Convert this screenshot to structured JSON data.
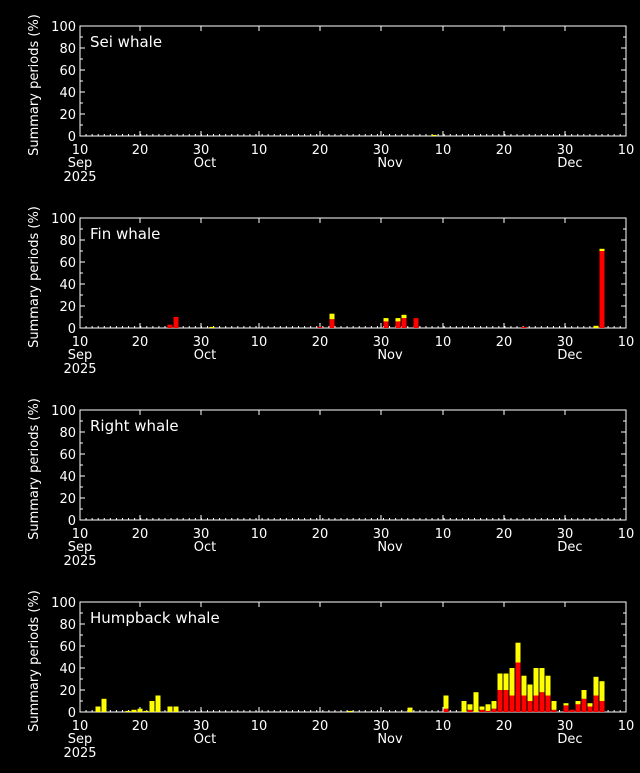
{
  "colors": {
    "background": "#000000",
    "axis": "#ffffff",
    "present": "#ff0000",
    "possible": "#ffff00"
  },
  "chart_data": [
    {
      "type": "bar",
      "stacked": true,
      "title": "Sei whale",
      "ylabel": "Summary periods (%)",
      "ylim": [
        0,
        100
      ],
      "yticks": [
        0,
        20,
        40,
        60,
        80,
        100
      ],
      "xlim": [
        "2025-09-10",
        "2025-12-10"
      ],
      "xticks": [
        "10",
        "20",
        "30",
        "10",
        "20",
        "30",
        "10",
        "20",
        "30",
        "10"
      ],
      "month_labels": [
        "Sep",
        "Oct",
        "Nov",
        "Dec"
      ],
      "year_label": "2025",
      "series": [
        {
          "color": "#ff0000",
          "points": []
        },
        {
          "color": "#ffff00",
          "points": [
            [
              "2025-11-08",
              1
            ]
          ]
        }
      ]
    },
    {
      "type": "bar",
      "stacked": true,
      "title": "Fin whale",
      "ylabel": "Summary periods (%)",
      "ylim": [
        0,
        100
      ],
      "yticks": [
        0,
        20,
        40,
        60,
        80,
        100
      ],
      "xlim": [
        "2025-09-10",
        "2025-12-10"
      ],
      "xticks": [
        "10",
        "20",
        "30",
        "10",
        "20",
        "30",
        "10",
        "20",
        "30",
        "10"
      ],
      "month_labels": [
        "Sep",
        "Oct",
        "Nov",
        "Dec"
      ],
      "year_label": "2025",
      "series": [
        {
          "color": "#ff0000",
          "points": [
            [
              "2025-09-25",
              3
            ],
            [
              "2025-09-26",
              10
            ],
            [
              "2025-10-20",
              1
            ],
            [
              "2025-10-22",
              8
            ],
            [
              "2025-10-31",
              6
            ],
            [
              "2025-11-02",
              6
            ],
            [
              "2025-11-03",
              9
            ],
            [
              "2025-11-05",
              9
            ],
            [
              "2025-11-23",
              1
            ],
            [
              "2025-12-06",
              70
            ]
          ]
        },
        {
          "color": "#ffff00",
          "points": [
            [
              "2025-10-02",
              1
            ],
            [
              "2025-10-22",
              5
            ],
            [
              "2025-10-31",
              3
            ],
            [
              "2025-11-02",
              3
            ],
            [
              "2025-11-03",
              3
            ],
            [
              "2025-12-05",
              2
            ],
            [
              "2025-12-06",
              2
            ]
          ]
        }
      ]
    },
    {
      "type": "bar",
      "stacked": true,
      "title": "Right whale",
      "ylabel": "Summary periods (%)",
      "ylim": [
        0,
        100
      ],
      "yticks": [
        0,
        20,
        40,
        60,
        80,
        100
      ],
      "xlim": [
        "2025-09-10",
        "2025-12-10"
      ],
      "xticks": [
        "10",
        "20",
        "30",
        "10",
        "20",
        "30",
        "10",
        "20",
        "30",
        "10"
      ],
      "month_labels": [
        "Sep",
        "Oct",
        "Nov",
        "Dec"
      ],
      "year_label": "2025",
      "series": [
        {
          "color": "#ff0000",
          "points": []
        },
        {
          "color": "#ffff00",
          "points": []
        }
      ]
    },
    {
      "type": "bar",
      "stacked": true,
      "title": "Humpback whale",
      "ylabel": "Summary periods (%)",
      "ylim": [
        0,
        100
      ],
      "yticks": [
        0,
        20,
        40,
        60,
        80,
        100
      ],
      "xlim": [
        "2025-09-10",
        "2025-12-10"
      ],
      "xticks": [
        "10",
        "20",
        "30",
        "10",
        "20",
        "30",
        "10",
        "20",
        "30",
        "10"
      ],
      "month_labels": [
        "Sep",
        "Oct",
        "Nov",
        "Dec"
      ],
      "year_label": "2025",
      "series": [
        {
          "color": "#ff0000",
          "points": [
            [
              "2025-11-10",
              3
            ],
            [
              "2025-11-14",
              2
            ],
            [
              "2025-11-16",
              2
            ],
            [
              "2025-11-17",
              1
            ],
            [
              "2025-11-18",
              3
            ],
            [
              "2025-11-19",
              20
            ],
            [
              "2025-11-20",
              20
            ],
            [
              "2025-11-21",
              15
            ],
            [
              "2025-11-22",
              45
            ],
            [
              "2025-11-23",
              15
            ],
            [
              "2025-11-24",
              10
            ],
            [
              "2025-11-25",
              15
            ],
            [
              "2025-11-26",
              18
            ],
            [
              "2025-11-27",
              15
            ],
            [
              "2025-11-28",
              2
            ],
            [
              "2025-11-30",
              6
            ],
            [
              "2025-12-01",
              2
            ],
            [
              "2025-12-02",
              7
            ],
            [
              "2025-12-03",
              12
            ],
            [
              "2025-12-04",
              5
            ],
            [
              "2025-12-05",
              15
            ],
            [
              "2025-12-06",
              10
            ]
          ]
        },
        {
          "color": "#ffff00",
          "points": [
            [
              "2025-09-13",
              5
            ],
            [
              "2025-09-14",
              12
            ],
            [
              "2025-09-18",
              1
            ],
            [
              "2025-09-19",
              2
            ],
            [
              "2025-09-20",
              3
            ],
            [
              "2025-09-21",
              1
            ],
            [
              "2025-09-22",
              10
            ],
            [
              "2025-09-23",
              15
            ],
            [
              "2025-09-25",
              5
            ],
            [
              "2025-09-26",
              5
            ],
            [
              "2025-10-25",
              1
            ],
            [
              "2025-11-04",
              4
            ],
            [
              "2025-11-10",
              12
            ],
            [
              "2025-11-13",
              10
            ],
            [
              "2025-11-14",
              5
            ],
            [
              "2025-11-15",
              18
            ],
            [
              "2025-11-16",
              3
            ],
            [
              "2025-11-17",
              6
            ],
            [
              "2025-11-18",
              7
            ],
            [
              "2025-11-19",
              15
            ],
            [
              "2025-11-20",
              15
            ],
            [
              "2025-11-21",
              25
            ],
            [
              "2025-11-22",
              18
            ],
            [
              "2025-11-23",
              18
            ],
            [
              "2025-11-24",
              15
            ],
            [
              "2025-11-25",
              25
            ],
            [
              "2025-11-26",
              22
            ],
            [
              "2025-11-27",
              18
            ],
            [
              "2025-11-28",
              8
            ],
            [
              "2025-11-30",
              2
            ],
            [
              "2025-12-02",
              3
            ],
            [
              "2025-12-03",
              8
            ],
            [
              "2025-12-04",
              3
            ],
            [
              "2025-12-05",
              17
            ],
            [
              "2025-12-06",
              18
            ]
          ]
        }
      ]
    }
  ]
}
